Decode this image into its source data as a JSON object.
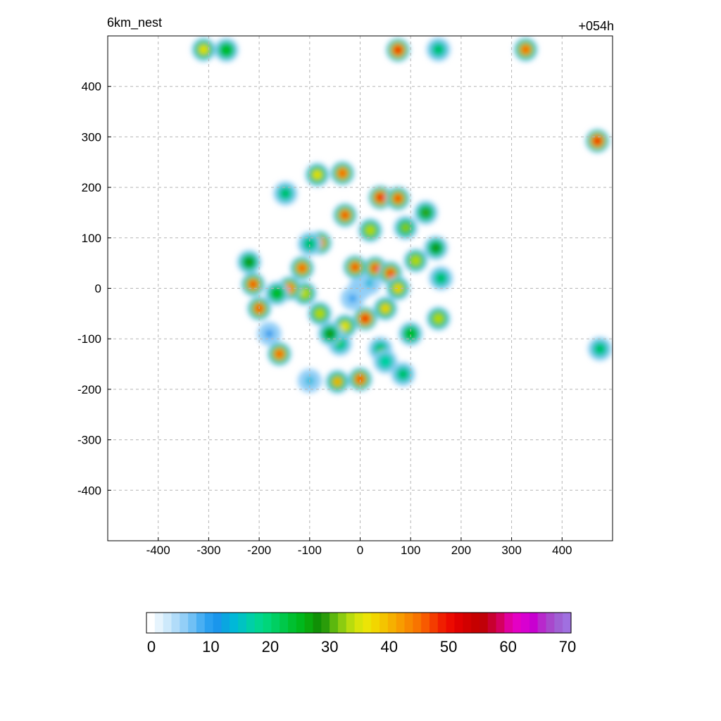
{
  "chart_data": {
    "type": "heatmap",
    "title_left": "6km_nest",
    "title_right": "+054h",
    "xlabel": "",
    "ylabel": "",
    "xlim": [
      -500,
      500
    ],
    "ylim": [
      -500,
      500
    ],
    "x_ticks": [
      -400,
      -300,
      -200,
      -100,
      0,
      100,
      200,
      300,
      400
    ],
    "y_ticks": [
      400,
      300,
      200,
      100,
      0,
      -100,
      -200,
      -300,
      -400
    ],
    "grid": true,
    "grid_style": "dashed",
    "colorbar": {
      "orientation": "horizontal",
      "placement": "bottom",
      "range": [
        0,
        70
      ],
      "ticks": [
        0,
        10,
        20,
        30,
        40,
        50,
        60,
        70
      ],
      "colors": [
        "#ffffff",
        "#e6f4fd",
        "#cde9fb",
        "#b1dcf9",
        "#93cff7",
        "#70c0f5",
        "#49aff3",
        "#2aa0f0",
        "#1a96ec",
        "#0aa6e0",
        "#00b8d8",
        "#00c3c2",
        "#00cfa8",
        "#00d690",
        "#00d67a",
        "#00cf62",
        "#00c84a",
        "#00c030",
        "#00b81c",
        "#0aa80c",
        "#109006",
        "#2a9c0a",
        "#5cb80e",
        "#8ccc10",
        "#b8dc0e",
        "#d8e40a",
        "#ece406",
        "#f2d600",
        "#f4c400",
        "#f6b000",
        "#f89c00",
        "#f88800",
        "#f87400",
        "#f85a00",
        "#f43c00",
        "#f01e00",
        "#ec0a00",
        "#e00000",
        "#d20000",
        "#c60000",
        "#c00008",
        "#c80030",
        "#d40060",
        "#e000a0",
        "#e400c4",
        "#d800d0",
        "#c800d0",
        "#b828cc",
        "#a848cc",
        "#a060d4",
        "#a070e0"
      ]
    },
    "cells": [
      {
        "x": 0,
        "y": 0,
        "v": 12
      },
      {
        "x": -15,
        "y": -20,
        "v": 10
      },
      {
        "x": 18,
        "y": 10,
        "v": 14
      },
      {
        "x": 30,
        "y": 40,
        "v": 48
      },
      {
        "x": 60,
        "y": 30,
        "v": 48
      },
      {
        "x": -10,
        "y": 42,
        "v": 47
      },
      {
        "x": 75,
        "y": 0,
        "v": 38
      },
      {
        "x": 50,
        "y": -40,
        "v": 38
      },
      {
        "x": 10,
        "y": -60,
        "v": 49
      },
      {
        "x": -30,
        "y": -75,
        "v": 36
      },
      {
        "x": -80,
        "y": -50,
        "v": 34
      },
      {
        "x": -110,
        "y": -10,
        "v": 33
      },
      {
        "x": -140,
        "y": 0,
        "v": 44
      },
      {
        "x": -115,
        "y": 40,
        "v": 46
      },
      {
        "x": -80,
        "y": 90,
        "v": 46
      },
      {
        "x": -30,
        "y": 145,
        "v": 47
      },
      {
        "x": 40,
        "y": 180,
        "v": 50
      },
      {
        "x": 75,
        "y": 178,
        "v": 48
      },
      {
        "x": 130,
        "y": 150,
        "v": 30
      },
      {
        "x": 150,
        "y": 80,
        "v": 28
      },
      {
        "x": 160,
        "y": 20,
        "v": 24
      },
      {
        "x": 155,
        "y": -60,
        "v": 34
      },
      {
        "x": 100,
        "y": -90,
        "v": 26
      },
      {
        "x": 40,
        "y": -120,
        "v": 24
      },
      {
        "x": -40,
        "y": -110,
        "v": 22
      },
      {
        "x": 20,
        "y": 115,
        "v": 34
      },
      {
        "x": 90,
        "y": 120,
        "v": 32
      },
      {
        "x": 110,
        "y": 55,
        "v": 33
      },
      {
        "x": -60,
        "y": -90,
        "v": 28
      },
      {
        "x": 0,
        "y": -180,
        "v": 48
      },
      {
        "x": -45,
        "y": -185,
        "v": 40
      },
      {
        "x": 85,
        "y": -170,
        "v": 24
      },
      {
        "x": 50,
        "y": -145,
        "v": 18
      },
      {
        "x": -310,
        "y": 473,
        "v": 36
      },
      {
        "x": -265,
        "y": 472,
        "v": 26
      },
      {
        "x": 75,
        "y": 472,
        "v": 50
      },
      {
        "x": 155,
        "y": 473,
        "v": 24
      },
      {
        "x": 328,
        "y": 473,
        "v": 46
      },
      {
        "x": 470,
        "y": 292,
        "v": 50
      },
      {
        "x": -85,
        "y": 225,
        "v": 36
      },
      {
        "x": -35,
        "y": 228,
        "v": 46
      },
      {
        "x": -148,
        "y": 188,
        "v": 24
      },
      {
        "x": -220,
        "y": 52,
        "v": 28
      },
      {
        "x": -212,
        "y": 8,
        "v": 48
      },
      {
        "x": -200,
        "y": -40,
        "v": 48
      },
      {
        "x": -160,
        "y": -130,
        "v": 46
      },
      {
        "x": -180,
        "y": -90,
        "v": 12
      },
      {
        "x": -100,
        "y": -183,
        "v": 14
      },
      {
        "x": 475,
        "y": -120,
        "v": 24
      },
      {
        "x": -100,
        "y": 88,
        "v": 24
      },
      {
        "x": -165,
        "y": -10,
        "v": 26
      }
    ]
  }
}
